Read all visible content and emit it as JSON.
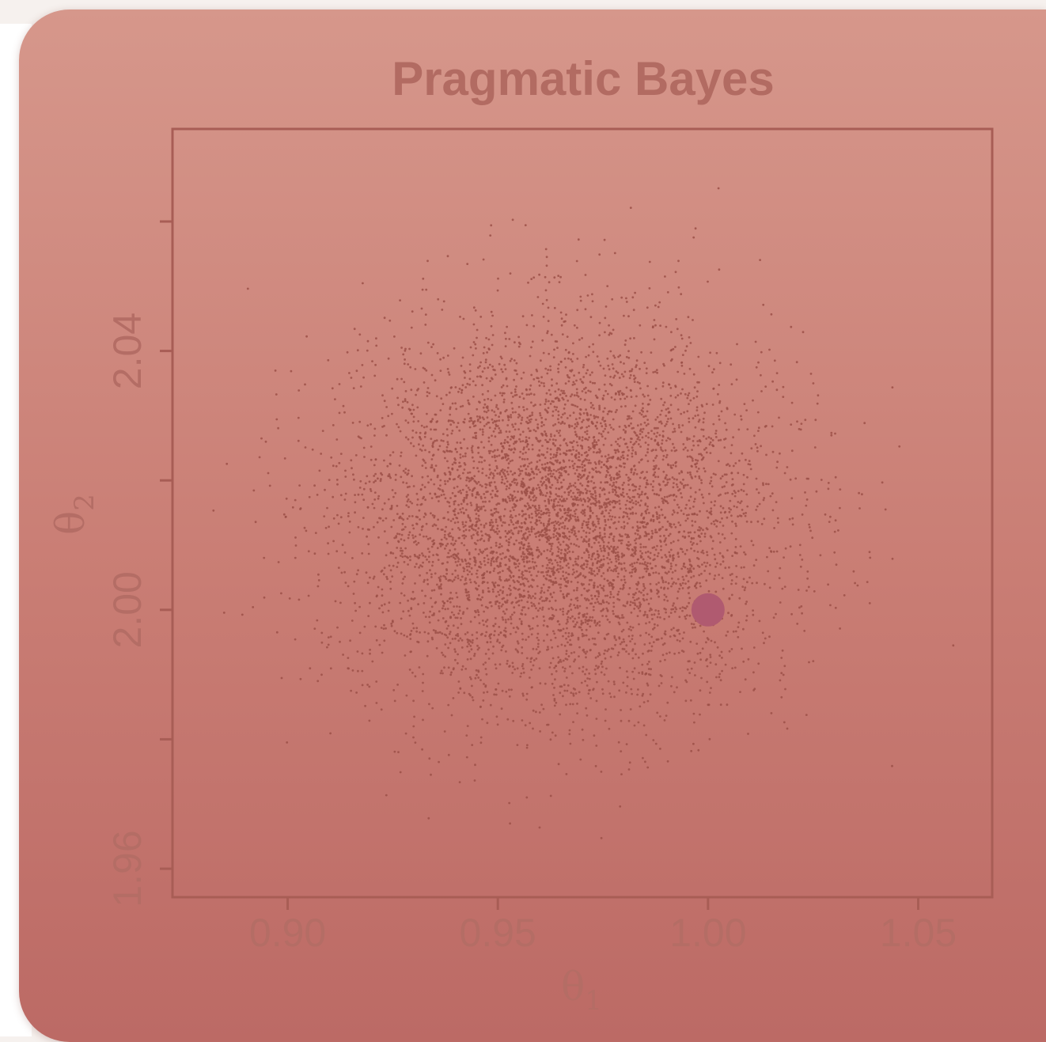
{
  "chart_data": {
    "type": "scatter",
    "title": "Pragmatic Bayes",
    "xlabel": "θ",
    "xlabel_sub": "1",
    "ylabel": "θ",
    "ylabel_sub": "2",
    "xlim": [
      0.8726,
      1.0676
    ],
    "ylim": [
      1.9556,
      2.0743
    ],
    "xticks": [
      0.9,
      0.95,
      1.0,
      1.05
    ],
    "xtick_labels": [
      "0.90",
      "0.95",
      "1.00",
      "1.05"
    ],
    "yticks": [
      1.96,
      1.98,
      2.0,
      2.02,
      2.04,
      2.06
    ],
    "ytick_labels": [
      "1.96",
      "",
      "2.00",
      "",
      "2.04",
      ""
    ],
    "grid": false,
    "series": [
      {
        "kind": "posterior-samples",
        "count": 6000,
        "center": [
          0.965,
          2.014
        ],
        "sd": [
          0.025,
          0.0145
        ],
        "color": "#9c5048"
      },
      {
        "kind": "true-parameter",
        "x": [
          1.0
        ],
        "y": [
          2.0
        ],
        "color": "#b05a70"
      }
    ]
  },
  "colors": {
    "axis": "#a85d55",
    "text": "#b46d65",
    "title": "#b26b62"
  }
}
